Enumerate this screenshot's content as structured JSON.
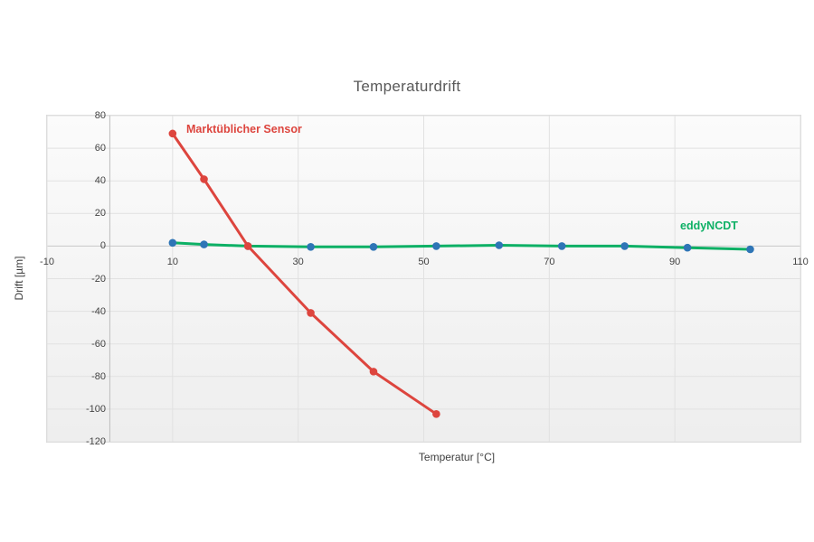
{
  "chart_data": {
    "type": "line",
    "title": "Temperaturdrift",
    "xlabel": "Temperatur [°C]",
    "ylabel": "Drift [µm]",
    "xlim": [
      -10,
      110
    ],
    "ylim": [
      -120,
      80
    ],
    "x_ticks": [
      -10,
      10,
      30,
      50,
      70,
      90,
      110
    ],
    "y_ticks": [
      80,
      60,
      40,
      20,
      0,
      -20,
      -40,
      -60,
      -80,
      -100,
      -120
    ],
    "grid": true,
    "legend_position": "inline-labels",
    "series": [
      {
        "name": "Marktüblicher Sensor",
        "color": "#dd453e",
        "marker_color": "#dd453e",
        "x": [
          10,
          15,
          22,
          32,
          42,
          52
        ],
        "y": [
          69,
          41,
          0,
          -41,
          -77,
          -103
        ]
      },
      {
        "name": "eddyNCDT",
        "color": "#0db065",
        "marker_color": "#2e75b6",
        "x": [
          10,
          15,
          22,
          32,
          42,
          52,
          62,
          72,
          82,
          92,
          102
        ],
        "y": [
          2,
          1,
          0,
          -0.5,
          -0.5,
          0,
          0.5,
          0,
          0,
          -1,
          -2
        ]
      }
    ],
    "style": {
      "plot_bg_top": "#fbfbfb",
      "plot_bg_bottom": "#eeeeee",
      "plot_border": "#d9d9d9",
      "gridline": "#e1e1e1",
      "axis_line": "#bdbdbd",
      "zero_line": "#c9c9c9",
      "title_color": "#595959",
      "tick_color": "#444444"
    }
  }
}
